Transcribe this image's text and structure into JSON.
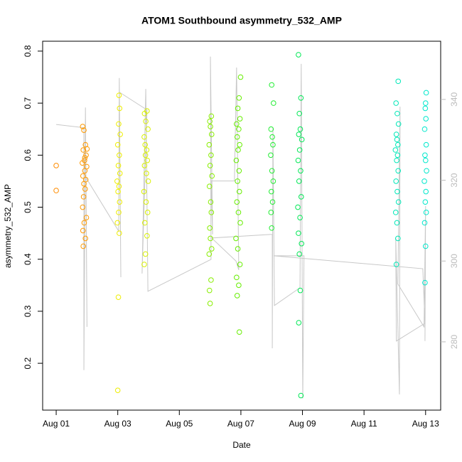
{
  "chart_data": {
    "type": "scatter",
    "title": "ATOM1 Southbound asymmetry_532_AMP",
    "xlabel": "Date",
    "ylabel": "asymmetry_532_AMP",
    "xlim": [
      0.56,
      13.49
    ],
    "xticks": [
      {
        "value": 1,
        "label": "Aug 01"
      },
      {
        "value": 3,
        "label": "Aug 03"
      },
      {
        "value": 5,
        "label": "Aug 05"
      },
      {
        "value": 7,
        "label": "Aug 07"
      },
      {
        "value": 9,
        "label": "Aug 09"
      },
      {
        "value": 11,
        "label": "Aug 11"
      },
      {
        "value": 13,
        "label": "Aug 13"
      }
    ],
    "ylim": [
      0.11,
      0.819
    ],
    "yticks": [
      0.2,
      0.3,
      0.4,
      0.5,
      0.6,
      0.7,
      0.8
    ],
    "y2lim": [
      263.1,
      354.4
    ],
    "y2ticks": [
      280,
      300,
      320,
      340
    ],
    "y2color": "#bbbbbb",
    "series": [
      {
        "mode": "line",
        "axis": "y2",
        "color": "#c8c8c8",
        "x": [
          1.0,
          1.9,
          1.9,
          1.95,
          2.0,
          1.97,
          3.03,
          3.05,
          3.1,
          3.05,
          3.95,
          3.79,
          3.91,
          3.98,
          6.03,
          6.01,
          6.08,
          6.03,
          6.79,
          6.86,
          6.93,
          6.84,
          6.05,
          8.02,
          8.02,
          8.04,
          8.09,
          8.92,
          8.96,
          9.01,
          9.05,
          8.06,
          12.91,
          12.98,
          12.05,
          12.03,
          12.15,
          12.17,
          12.1,
          12.95,
          13.0,
          12.98
        ],
        "values": [
          333.8,
          333,
          273,
          338,
          283.7,
          320.6,
          307.4,
          345.3,
          296,
          341.8,
          337.4,
          296.9,
          342.6,
          292.5,
          300.4,
          350.6,
          306.6,
          319.8,
          319.8,
          347.9,
          297.8,
          300,
          305.7,
          306.6,
          278.4,
          333,
          289,
          293.4,
          348.8,
          266,
          301.3,
          301.3,
          298.1,
          284.6,
          280.2,
          305.7,
          267,
          338.2,
          294.3,
          283.7,
          313.6,
          280.2
        ]
      },
      {
        "mode": "points",
        "color": "#ff8c00",
        "x": [
          1.0,
          1.0
        ],
        "values": [
          0.58,
          0.532
        ]
      },
      {
        "mode": "points",
        "color": "#ff9a00",
        "x": [
          1.86,
          1.9,
          1.95,
          1.88,
          1.97,
          1.92,
          1.85,
          1.99,
          1.93,
          1.87,
          1.96,
          1.9,
          1.94,
          1.89,
          1.86,
          1.98,
          1.91,
          1.87,
          1.95,
          1.88,
          2.0,
          1.93
        ],
        "values": [
          0.655,
          0.648,
          0.62,
          0.61,
          0.6,
          0.59,
          0.585,
          0.578,
          0.57,
          0.56,
          0.553,
          0.545,
          0.535,
          0.52,
          0.5,
          0.48,
          0.47,
          0.455,
          0.44,
          0.425,
          0.612,
          0.595
        ]
      },
      {
        "mode": "points",
        "color": "#eeee00",
        "x": [
          3.0,
          3.02,
          3.05,
          2.99,
          3.03,
          3.06,
          3.01,
          3.04,
          2.98,
          3.07,
          3.02,
          3.05,
          3.0,
          3.08,
          3.03,
          3.06,
          3.04
        ],
        "values": [
          0.148,
          0.327,
          0.45,
          0.47,
          0.49,
          0.51,
          0.53,
          0.54,
          0.55,
          0.565,
          0.58,
          0.6,
          0.62,
          0.64,
          0.66,
          0.69,
          0.715
        ]
      },
      {
        "mode": "points",
        "color": "#d8f000",
        "x": [
          3.86,
          3.9,
          3.95,
          3.88,
          3.97,
          3.92,
          3.85,
          3.99,
          3.93,
          3.87,
          3.96,
          3.9,
          3.94,
          3.89,
          3.86,
          3.98,
          3.91,
          3.87,
          3.95
        ],
        "values": [
          0.39,
          0.41,
          0.445,
          0.47,
          0.49,
          0.51,
          0.53,
          0.55,
          0.565,
          0.58,
          0.59,
          0.6,
          0.61,
          0.62,
          0.635,
          0.65,
          0.665,
          0.68,
          0.685
        ]
      },
      {
        "mode": "points",
        "color": "#88ee00",
        "x": [
          6.0,
          5.98,
          6.03,
          5.97,
          6.05,
          6.01,
          5.99,
          6.04,
          6.02,
          5.98,
          6.06,
          6.0,
          6.03,
          5.97,
          6.05,
          6.01,
          5.99,
          6.04
        ],
        "values": [
          0.315,
          0.34,
          0.36,
          0.41,
          0.42,
          0.44,
          0.46,
          0.49,
          0.51,
          0.54,
          0.56,
          0.58,
          0.6,
          0.62,
          0.64,
          0.655,
          0.665,
          0.675
        ]
      },
      {
        "mode": "points",
        "color": "#66ee00",
        "x": [
          6.95,
          6.88,
          6.93,
          6.86,
          6.97,
          6.9,
          6.84,
          6.98,
          6.92,
          6.87,
          6.95,
          6.89,
          6.94,
          6.85,
          6.91,
          6.96,
          6.88,
          6.93,
          6.86,
          6.97,
          6.9,
          6.94,
          6.99
        ],
        "values": [
          0.26,
          0.33,
          0.35,
          0.365,
          0.39,
          0.42,
          0.44,
          0.47,
          0.49,
          0.51,
          0.53,
          0.55,
          0.57,
          0.59,
          0.61,
          0.62,
          0.635,
          0.65,
          0.66,
          0.67,
          0.69,
          0.71,
          0.75
        ]
      },
      {
        "mode": "points",
        "color": "#22ee33",
        "x": [
          8.0,
          7.98,
          8.03,
          7.99,
          8.05,
          8.01,
          7.97,
          8.04,
          8.02,
          7.98,
          8.06,
          8.0
        ],
        "values": [
          0.46,
          0.49,
          0.51,
          0.53,
          0.55,
          0.57,
          0.6,
          0.62,
          0.635,
          0.65,
          0.7,
          0.735
        ]
      },
      {
        "mode": "points",
        "color": "#00e855",
        "x": [
          8.95,
          8.88,
          8.93,
          8.9,
          8.97,
          8.87,
          8.92,
          8.85,
          8.96,
          8.89,
          8.94,
          8.86,
          8.91,
          8.98,
          8.88,
          8.93,
          8.9,
          8.95,
          8.87
        ],
        "values": [
          0.138,
          0.278,
          0.34,
          0.41,
          0.43,
          0.45,
          0.48,
          0.5,
          0.52,
          0.55,
          0.57,
          0.59,
          0.61,
          0.63,
          0.64,
          0.65,
          0.68,
          0.71,
          0.793
        ]
      },
      {
        "mode": "points",
        "color": "#00e8b8",
        "x": [
          12.05,
          12.1,
          12.07,
          12.03,
          12.12,
          12.08,
          12.04,
          12.11,
          12.06,
          12.09,
          12.02,
          12.1,
          12.07,
          12.05,
          12.12,
          12.08,
          12.04,
          12.11
        ],
        "values": [
          0.39,
          0.44,
          0.47,
          0.49,
          0.51,
          0.53,
          0.55,
          0.57,
          0.59,
          0.6,
          0.61,
          0.62,
          0.63,
          0.64,
          0.66,
          0.68,
          0.7,
          0.742
        ]
      },
      {
        "mode": "points",
        "color": "#00e8cc",
        "x": [
          12.98,
          13.0,
          12.97,
          13.02,
          12.99,
          13.01,
          12.96,
          13.03,
          13.0,
          12.98,
          13.02,
          12.97,
          13.01,
          12.99,
          13.0,
          13.02
        ],
        "values": [
          0.355,
          0.425,
          0.47,
          0.49,
          0.51,
          0.53,
          0.55,
          0.57,
          0.59,
          0.6,
          0.62,
          0.65,
          0.67,
          0.69,
          0.7,
          0.72
        ]
      }
    ]
  }
}
